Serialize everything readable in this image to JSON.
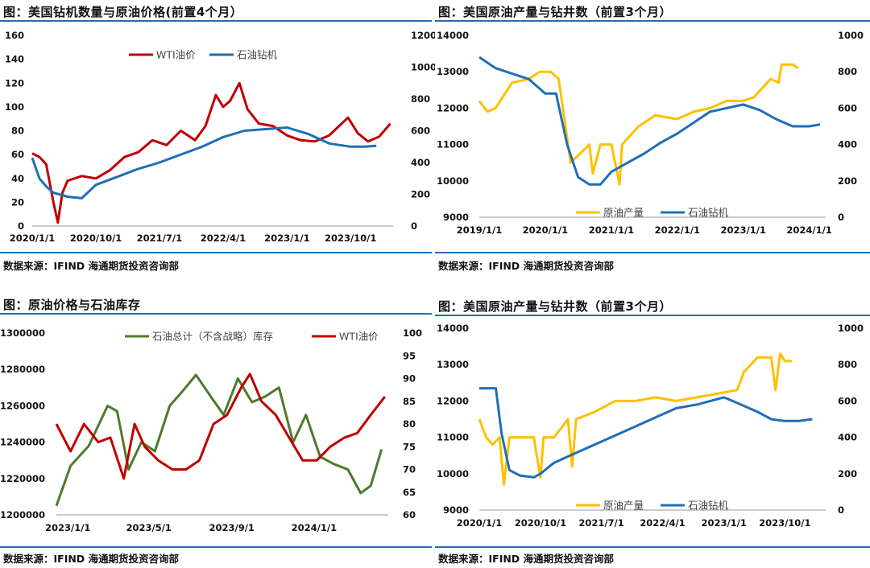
{
  "colors": {
    "red": "#c00000",
    "blue": "#1f6fb5",
    "yellow": "#ffc000",
    "green": "#4e7a2a",
    "rule": "#1f6fb5"
  },
  "chart_data": [
    {
      "id": "p1",
      "type": "line",
      "title": "图：美国钻机数量与原油价格(前置4个月）",
      "source": "数据来源：IFIND   海通期货投资咨询部",
      "x_range": [
        "2020-01-01",
        "2024-04-01"
      ],
      "x_ticks": [
        "2020/1/1",
        "2020/10/1",
        "2021/7/1",
        "2022/4/1",
        "2023/1/1",
        "2023/10/1"
      ],
      "y_left": {
        "min": 0,
        "max": 160,
        "ticks": [
          "0",
          "20",
          "40",
          "60",
          "80",
          "100",
          "120",
          "140",
          "160"
        ]
      },
      "y_right": {
        "min": 0,
        "max": 1200,
        "ticks": [
          "0",
          "200",
          "400",
          "600",
          "800",
          "1000",
          "1200"
        ]
      },
      "legend": [
        "WTI油价",
        "石油钻机"
      ],
      "series": [
        {
          "name": "WTI油价",
          "axis": "left",
          "color": "red",
          "x": [
            "2020-01-01",
            "2020-02-01",
            "2020-03-01",
            "2020-04-01",
            "2020-04-20",
            "2020-05-10",
            "2020-06-01",
            "2020-08-01",
            "2020-10-01",
            "2020-12-01",
            "2021-02-01",
            "2021-04-01",
            "2021-06-01",
            "2021-08-01",
            "2021-10-01",
            "2021-12-01",
            "2022-01-15",
            "2022-03-01",
            "2022-04-01",
            "2022-05-01",
            "2022-06-10",
            "2022-07-15",
            "2022-09-01",
            "2022-11-01",
            "2023-01-01",
            "2023-03-01",
            "2023-05-01",
            "2023-07-01",
            "2023-09-20",
            "2023-11-01",
            "2023-12-15",
            "2024-02-01",
            "2024-03-20"
          ],
          "y": [
            61,
            58,
            52,
            20,
            3,
            28,
            38,
            42,
            40,
            47,
            58,
            62,
            72,
            68,
            80,
            72,
            84,
            110,
            100,
            105,
            120,
            98,
            86,
            84,
            76,
            72,
            71,
            76,
            91,
            78,
            71,
            75,
            86
          ]
        },
        {
          "name": "石油钻机",
          "axis": "right",
          "color": "blue",
          "x": [
            "2020-01-01",
            "2020-02-01",
            "2020-03-01",
            "2020-04-01",
            "2020-06-01",
            "2020-08-01",
            "2020-10-01",
            "2021-01-01",
            "2021-04-01",
            "2021-07-01",
            "2021-10-01",
            "2022-01-01",
            "2022-04-01",
            "2022-07-01",
            "2022-10-01",
            "2023-01-01",
            "2023-04-01",
            "2023-07-01",
            "2023-10-01",
            "2023-12-01",
            "2024-01-20"
          ],
          "y": [
            430,
            300,
            250,
            210,
            185,
            175,
            260,
            310,
            360,
            400,
            450,
            500,
            560,
            600,
            610,
            620,
            580,
            520,
            500,
            500,
            505
          ]
        }
      ]
    },
    {
      "id": "p2",
      "type": "line",
      "title": "图：美国原油产量与钻井数（前置3个月）",
      "source": "数据来源：IFIND   海通期货投资咨询部",
      "x_range": [
        "2019-01-01",
        "2024-04-01"
      ],
      "x_ticks": [
        "2019/1/1",
        "2020/1/1",
        "2021/1/1",
        "2022/1/1",
        "2023/1/1",
        "2024/1/1"
      ],
      "y_left": {
        "min": 9000,
        "max": 14000,
        "ticks": [
          "9000",
          "10000",
          "11000",
          "12000",
          "13000",
          "14000"
        ]
      },
      "y_right": {
        "min": 0,
        "max": 1000,
        "ticks": [
          "0",
          "200",
          "400",
          "600",
          "800",
          "1000"
        ]
      },
      "legend": [
        "原油产量",
        "石油钻机"
      ],
      "series": [
        {
          "name": "原油产量",
          "axis": "left",
          "color": "yellow",
          "x": [
            "2019-01-01",
            "2019-02-15",
            "2019-04-01",
            "2019-07-01",
            "2019-10-01",
            "2019-12-01",
            "2020-02-01",
            "2020-03-15",
            "2020-05-01",
            "2020-05-20",
            "2020-07-01",
            "2020-09-01",
            "2020-09-20",
            "2020-11-01",
            "2021-01-01",
            "2021-02-15",
            "2021-03-01",
            "2021-06-01",
            "2021-09-01",
            "2022-01-01",
            "2022-04-01",
            "2022-07-01",
            "2022-10-01",
            "2023-01-01",
            "2023-03-01",
            "2023-06-01",
            "2023-07-15",
            "2023-08-01",
            "2023-10-01",
            "2023-11-01"
          ],
          "y": [
            12200,
            11900,
            12000,
            12700,
            12800,
            13000,
            13000,
            12800,
            11200,
            10500,
            10700,
            11000,
            10200,
            11000,
            11000,
            9900,
            11000,
            11500,
            11800,
            11700,
            11900,
            12000,
            12200,
            12200,
            12300,
            12800,
            12700,
            13200,
            13200,
            13100
          ]
        },
        {
          "name": "石油钻机",
          "axis": "right",
          "color": "blue",
          "x": [
            "2019-01-01",
            "2019-04-01",
            "2019-07-01",
            "2019-10-01",
            "2020-01-01",
            "2020-03-01",
            "2020-05-01",
            "2020-07-01",
            "2020-09-01",
            "2020-11-01",
            "2021-01-01",
            "2021-04-01",
            "2021-07-01",
            "2021-10-01",
            "2022-01-01",
            "2022-04-01",
            "2022-07-01",
            "2022-10-01",
            "2023-01-01",
            "2023-04-01",
            "2023-07-01",
            "2023-10-01",
            "2024-01-01",
            "2024-03-01"
          ],
          "y": [
            880,
            820,
            790,
            760,
            680,
            680,
            400,
            220,
            180,
            180,
            250,
            300,
            350,
            410,
            460,
            520,
            580,
            600,
            620,
            590,
            540,
            500,
            500,
            510
          ]
        }
      ]
    },
    {
      "id": "p3",
      "type": "line",
      "title": "图：原油价格与石油库存",
      "source": "数据来源：IFIND   海通期货投资咨询部",
      "x_range": [
        "2022-12-15",
        "2024-04-20"
      ],
      "x_ticks": [
        "2023/1/1",
        "2023/5/1",
        "2023/9/1",
        "2024/1/1"
      ],
      "y_left": {
        "min": 1200000,
        "max": 1300000,
        "ticks": [
          "1200000",
          "1220000",
          "1240000",
          "1260000",
          "1280000",
          "1300000"
        ]
      },
      "y_right": {
        "min": 60,
        "max": 100,
        "ticks": [
          "60",
          "65",
          "70",
          "75",
          "80",
          "85",
          "90",
          "95",
          "100"
        ]
      },
      "legend": [
        "石油总计（不含战略）库存",
        "WTI油价"
      ],
      "series": [
        {
          "name": "石油总计（不含战略）库存",
          "axis": "left",
          "color": "green",
          "x": [
            "2022-12-15",
            "2023-01-05",
            "2023-02-01",
            "2023-03-01",
            "2023-03-15",
            "2023-04-01",
            "2023-04-20",
            "2023-05-10",
            "2023-06-01",
            "2023-06-20",
            "2023-07-10",
            "2023-08-01",
            "2023-08-20",
            "2023-09-10",
            "2023-10-01",
            "2023-10-20",
            "2023-11-10",
            "2023-12-01",
            "2023-12-20",
            "2024-01-10",
            "2024-01-30",
            "2024-02-20",
            "2024-03-10",
            "2024-03-25",
            "2024-04-10"
          ],
          "y": [
            1205000,
            1227000,
            1238000,
            1260000,
            1257000,
            1225000,
            1240000,
            1235000,
            1260000,
            1268000,
            1277000,
            1265000,
            1255000,
            1275000,
            1262000,
            1265000,
            1270000,
            1240000,
            1255000,
            1232000,
            1228000,
            1225000,
            1212000,
            1216000,
            1236000
          ]
        },
        {
          "name": "WTI油价",
          "axis": "right",
          "color": "red",
          "x": [
            "2022-12-15",
            "2023-01-05",
            "2023-01-25",
            "2023-02-15",
            "2023-03-05",
            "2023-03-25",
            "2023-04-10",
            "2023-04-25",
            "2023-05-15",
            "2023-06-05",
            "2023-06-25",
            "2023-07-15",
            "2023-08-05",
            "2023-08-25",
            "2023-09-15",
            "2023-09-28",
            "2023-10-15",
            "2023-11-05",
            "2023-11-25",
            "2023-12-15",
            "2024-01-05",
            "2024-01-25",
            "2024-02-15",
            "2024-03-05",
            "2024-03-25",
            "2024-04-15"
          ],
          "y": [
            80,
            74,
            80,
            76,
            77,
            68,
            80,
            75,
            72,
            70,
            70,
            72,
            80,
            82,
            88,
            91,
            85,
            82,
            77,
            72,
            72,
            75,
            77,
            78,
            82,
            86
          ]
        }
      ]
    },
    {
      "id": "p4",
      "type": "line",
      "title": "图：美国原油产量与钻井数（前置3个月）",
      "source": "数据来源：IFIND   海通期货投资咨询部",
      "x_range": [
        "2020-01-01",
        "2024-04-01"
      ],
      "x_ticks": [
        "2020/1/1",
        "2020/10/1",
        "2021/7/1",
        "2022/4/1",
        "2023/1/1",
        "2023/10/1"
      ],
      "y_left": {
        "min": 9000,
        "max": 14000,
        "ticks": [
          "9000",
          "10000",
          "11000",
          "12000",
          "13000",
          "14000"
        ]
      },
      "y_right": {
        "min": 0,
        "max": 1000,
        "ticks": [
          "0",
          "200",
          "400",
          "600",
          "800",
          "1000"
        ]
      },
      "legend": [
        "原油产量",
        "石油钻机"
      ],
      "series": [
        {
          "name": "原油产量",
          "axis": "left",
          "color": "yellow",
          "x": [
            "2020-01-01",
            "2020-02-01",
            "2020-03-01",
            "2020-04-01",
            "2020-04-20",
            "2020-05-15",
            "2020-06-15",
            "2020-08-01",
            "2020-09-01",
            "2020-10-01",
            "2020-10-15",
            "2020-12-01",
            "2021-02-01",
            "2021-02-20",
            "2021-03-10",
            "2021-06-01",
            "2021-09-01",
            "2021-12-01",
            "2022-03-01",
            "2022-06-01",
            "2022-09-01",
            "2022-12-01",
            "2023-03-01",
            "2023-04-01",
            "2023-06-01",
            "2023-08-01",
            "2023-08-20",
            "2023-09-10",
            "2023-10-01",
            "2023-11-01"
          ],
          "y": [
            11500,
            11000,
            10800,
            11000,
            9700,
            11000,
            11000,
            11000,
            11000,
            9900,
            11000,
            11000,
            11500,
            10200,
            11500,
            11700,
            12000,
            12000,
            12100,
            12000,
            12100,
            12200,
            12300,
            12800,
            13200,
            13200,
            12300,
            13300,
            13100,
            13100
          ]
        },
        {
          "name": "石油钻机",
          "axis": "right",
          "color": "blue",
          "x": [
            "2020-01-01",
            "2020-02-15",
            "2020-03-15",
            "2020-04-10",
            "2020-05-15",
            "2020-07-01",
            "2020-09-01",
            "2020-10-01",
            "2020-12-01",
            "2021-03-01",
            "2021-06-01",
            "2021-09-01",
            "2021-12-01",
            "2022-03-01",
            "2022-06-01",
            "2022-09-01",
            "2022-11-01",
            "2023-01-01",
            "2023-03-01",
            "2023-06-01",
            "2023-08-01",
            "2023-10-01",
            "2023-12-01",
            "2024-02-01"
          ],
          "y": [
            670,
            670,
            670,
            420,
            220,
            190,
            180,
            200,
            260,
            310,
            360,
            410,
            460,
            510,
            560,
            580,
            600,
            620,
            590,
            540,
            500,
            490,
            490,
            500
          ]
        }
      ]
    }
  ]
}
